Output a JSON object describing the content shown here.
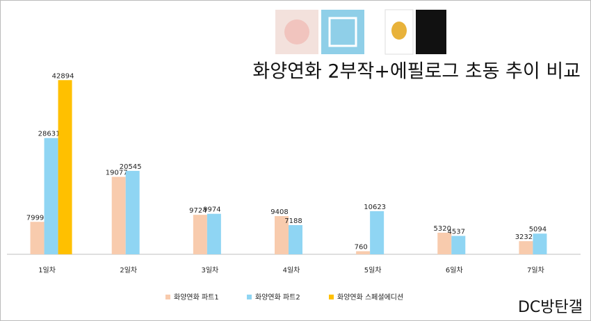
{
  "chart_data": {
    "type": "bar",
    "title": "화양연화 2부작+에필로그 초동 추이 비교",
    "watermark": "DC방탄갤",
    "categories": [
      "1일차",
      "2일차",
      "3일차",
      "4일차",
      "5일차",
      "6일차",
      "7일차"
    ],
    "series": [
      {
        "name": "화양연화 파트1",
        "color": "#f8cbad",
        "values": [
          7999,
          19077,
          9724,
          9408,
          760,
          5320,
          3232
        ]
      },
      {
        "name": "화양연화 파트2",
        "color": "#8fd5f3",
        "values": [
          28631,
          20545,
          9974,
          7188,
          10623,
          4537,
          5094
        ]
      },
      {
        "name": "화양연화 스페셜에디션",
        "color": "#ffc000",
        "values": [
          42894,
          null,
          null,
          null,
          null,
          null,
          null
        ]
      }
    ],
    "ylim": [
      0,
      45000
    ],
    "legend": "bottom"
  }
}
